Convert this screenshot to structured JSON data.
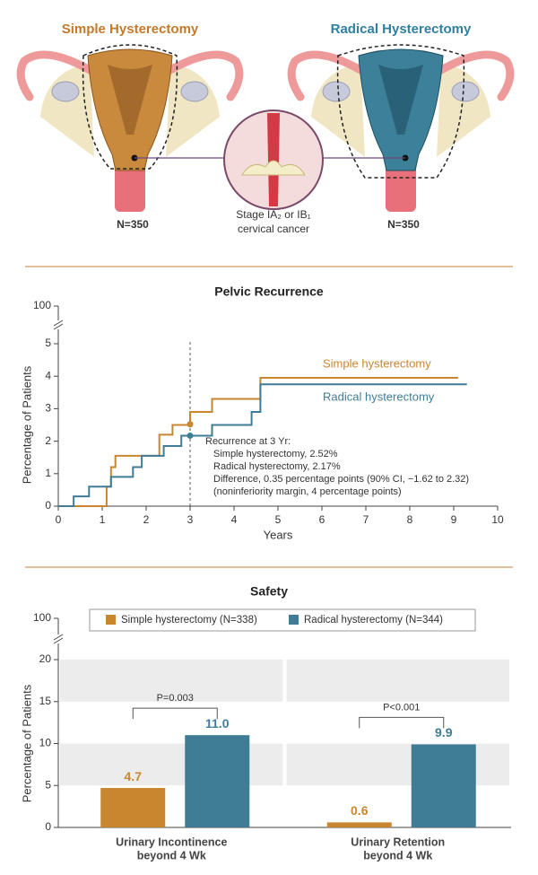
{
  "header": {
    "left_title": "Simple Hysterectomy",
    "right_title": "Radical Hysterectomy",
    "left_n": "N=350",
    "right_n": "N=350",
    "inset_label": [
      "Stage IA₂ or IB₁",
      "cervical cancer"
    ]
  },
  "chart_data": [
    {
      "type": "line",
      "step": true,
      "title": "Pelvic Recurrence",
      "xlabel": "Years",
      "ylabel": "Percentage of Patients",
      "xlim": [
        0,
        10
      ],
      "xticks": [
        0,
        1,
        2,
        3,
        4,
        5,
        6,
        7,
        8,
        9,
        10
      ],
      "ylim": [
        0,
        5
      ],
      "yticks": [
        0,
        1,
        2,
        3,
        4,
        5,
        100
      ],
      "axis_break": true,
      "series": [
        {
          "name": "Simple hysterectomy",
          "color": "#c8862f",
          "x": [
            0,
            1.1,
            1.2,
            1.3,
            2.3,
            2.6,
            3.0,
            3.5,
            4.6,
            9.1
          ],
          "values": [
            0,
            0.6,
            1.2,
            1.55,
            2.2,
            2.5,
            2.9,
            3.3,
            3.95,
            3.95
          ]
        },
        {
          "name": "Radical hysterectomy",
          "color": "#3f7d96",
          "x": [
            0,
            0.35,
            0.7,
            1.2,
            1.7,
            1.9,
            2.4,
            2.8,
            3.5,
            4.4,
            4.6,
            9.3
          ],
          "values": [
            0,
            0.3,
            0.6,
            0.9,
            1.2,
            1.55,
            1.85,
            2.17,
            2.5,
            2.9,
            3.75,
            3.75
          ]
        }
      ],
      "markers": {
        "x": 3,
        "values": [
          2.52,
          2.17
        ]
      },
      "annotation": [
        "Recurrence at 3 Yr:",
        "Simple hysterectomy, 2.52%",
        "Radical hysterectomy, 2.17%",
        "Difference, 0.35 percentage points (90% CI, −1.62 to 2.32)",
        "(noninferiority margin, 4 percentage points)"
      ]
    },
    {
      "type": "bar",
      "title": "Safety",
      "ylabel": "Percentage of Patients",
      "categories": [
        [
          "Urinary Incontinence",
          "beyond 4 Wk"
        ],
        [
          "Urinary Retention",
          "beyond 4 Wk"
        ]
      ],
      "ylim": [
        0,
        20
      ],
      "yticks": [
        0,
        5,
        10,
        15,
        20,
        100
      ],
      "axis_break": true,
      "legend": "top",
      "series": [
        {
          "name": "Simple hysterectomy (N=338)",
          "color": "#c8862f",
          "values": [
            4.7,
            0.6
          ],
          "value_labels": [
            "4.7",
            "0.6"
          ]
        },
        {
          "name": "Radical hysterectomy (N=344)",
          "color": "#3f7d96",
          "values": [
            11.0,
            9.9
          ],
          "value_labels": [
            "11.0",
            "9.9"
          ]
        }
      ],
      "annotations": [
        "P=0.003",
        "P<0.001"
      ]
    }
  ]
}
